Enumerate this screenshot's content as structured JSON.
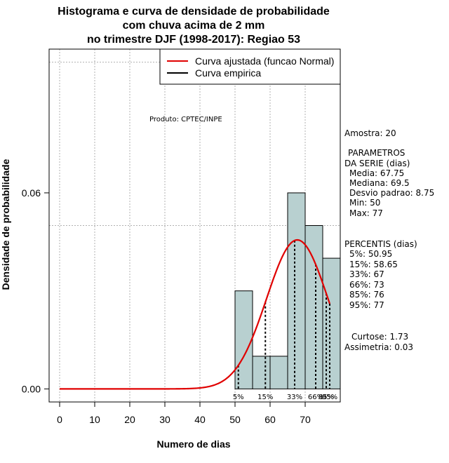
{
  "chart_data": {
    "type": "bar",
    "title_lines": [
      "Histograma e curva de densidade de probabilidade",
      "com chuva acima de 2 mm",
      "no trimestre DJF (1998-2017): Regiao 53"
    ],
    "xlabel": "Numero de dias",
    "ylabel": "Densidade de probabilidade",
    "xlim": [
      -3,
      80
    ],
    "ylim": [
      -0.004,
      0.104
    ],
    "xticks": [
      0,
      10,
      20,
      30,
      40,
      50,
      60,
      70
    ],
    "yticks": [
      0.0,
      0.06
    ],
    "ytick_labels": [
      "0.00",
      "0.06"
    ],
    "grid_x": [
      0,
      10,
      20,
      30,
      40,
      50,
      60,
      70
    ],
    "grid_y": [
      0.05,
      0.1
    ],
    "histogram": {
      "bins": [
        {
          "start": 50,
          "end": 55,
          "density": 0.03
        },
        {
          "start": 55,
          "end": 60,
          "density": 0.01
        },
        {
          "start": 60,
          "end": 65,
          "density": 0.01
        },
        {
          "start": 65,
          "end": 70,
          "density": 0.06
        },
        {
          "start": 70,
          "end": 75,
          "density": 0.05
        },
        {
          "start": 75,
          "end": 80,
          "density": 0.04
        }
      ],
      "fill": "#b8d0d0"
    },
    "normal_curve": {
      "mean": 67.75,
      "sd": 8.75,
      "x_from": 0,
      "x_to": 77,
      "color": "#e00000"
    },
    "percentile_markers": [
      {
        "label": "5%",
        "x": 50.95
      },
      {
        "label": "15%",
        "x": 58.65
      },
      {
        "label": "33%",
        "x": 67
      },
      {
        "label": "66%",
        "x": 73
      },
      {
        "label": "85%",
        "x": 76
      },
      {
        "label": "95%",
        "x": 77
      }
    ],
    "legend": [
      {
        "label": "Curva ajustada (funcao Normal)",
        "color": "#e00000"
      },
      {
        "label": "Curva empirica",
        "color": "#000000"
      }
    ],
    "legend_position": "top-right"
  },
  "annotations": {
    "product": "Produto: CPTEC/INPE",
    "sample": "Amostra: 20",
    "params_header_1": "PARAMETROS",
    "params_header_2": "DA SERIE (dias)",
    "params": [
      "Media: 67.75",
      "Mediana: 69.5",
      "Desvio padrao: 8.75",
      "Min: 50",
      "Max: 77"
    ],
    "percentiles_header": "PERCENTIS (dias)",
    "percentiles": [
      "5%: 50.95",
      "15%: 58.65",
      "33%: 67",
      "66%: 73",
      "85%: 76",
      "95%: 77"
    ],
    "kurtosis": "Curtose: 1.73",
    "skewness": "Assimetria: 0.03"
  }
}
